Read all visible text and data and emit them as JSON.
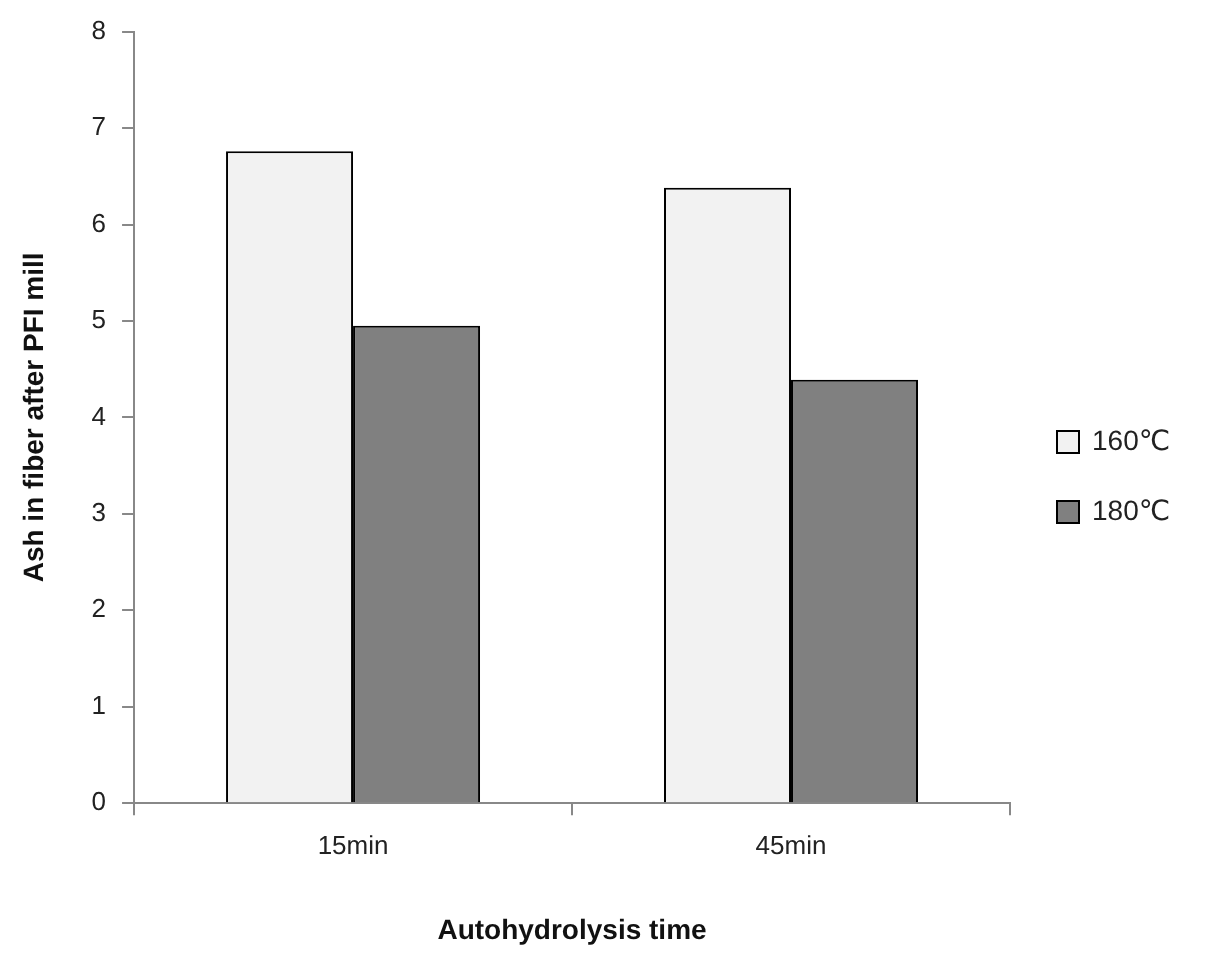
{
  "chart_data": {
    "type": "bar",
    "xlabel": "Autohydrolysis time",
    "ylabel": "Ash in fiber after PFI mill",
    "categories": [
      "15min",
      "45min"
    ],
    "series": [
      {
        "name": "160℃",
        "color": "#f2f2f2",
        "values": [
          6.76,
          6.38
        ]
      },
      {
        "name": "180℃",
        "color": "#808080",
        "values": [
          4.95,
          4.39
        ]
      }
    ],
    "ylim": [
      0,
      8
    ],
    "yticks": [
      0,
      1,
      2,
      3,
      4,
      5,
      6,
      7,
      8
    ],
    "grid": false,
    "legend": "right"
  }
}
